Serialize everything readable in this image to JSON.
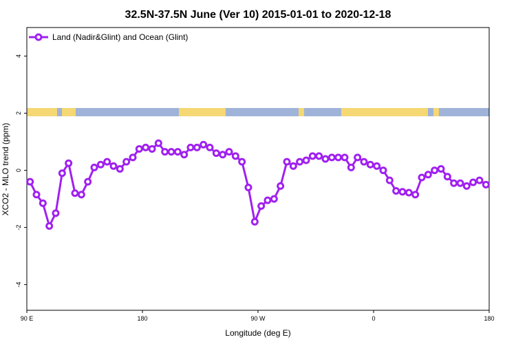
{
  "chart_data": {
    "type": "line",
    "title": "32.5N-37.5N June (Ver 10)   2015-01-01 to 2020-12-18",
    "xlabel": "Longitude (deg E)",
    "ylabel": "XCO2 - MLO trend (ppm)",
    "xlim": [
      90,
      450
    ],
    "ylim": [
      -4.9,
      5.0
    ],
    "x_ticks": [
      {
        "value": 90,
        "label": "90 E"
      },
      {
        "value": 180,
        "label": "180"
      },
      {
        "value": 270,
        "label": "90 W"
      },
      {
        "value": 360,
        "label": "0"
      },
      {
        "value": 450,
        "label": "180"
      }
    ],
    "y_ticks": [
      {
        "value": -4,
        "label": "-4"
      },
      {
        "value": -2,
        "label": "-2"
      },
      {
        "value": 0,
        "label": "0"
      },
      {
        "value": 2,
        "label": "2"
      },
      {
        "value": 4,
        "label": "4"
      }
    ],
    "colors": {
      "series": "#a020f0",
      "ocean": "#9fb3d8",
      "land": "#f5d773"
    },
    "legend_position": "top-left",
    "series": [
      {
        "name": "Land (Nadir&Glint) and Ocean (Glint)",
        "x": [
          92.5,
          97.5,
          102.5,
          107.5,
          112.5,
          117.5,
          122.5,
          127.5,
          132.5,
          137.5,
          142.5,
          147.5,
          152.5,
          157.5,
          162.5,
          167.5,
          172.5,
          177.5,
          182.5,
          187.5,
          192.5,
          197.5,
          202.5,
          207.5,
          212.5,
          217.5,
          222.5,
          227.5,
          232.5,
          237.5,
          242.5,
          247.5,
          252.5,
          257.5,
          262.5,
          267.5,
          272.5,
          277.5,
          282.5,
          287.5,
          292.5,
          297.5,
          302.5,
          307.5,
          312.5,
          317.5,
          322.5,
          327.5,
          332.5,
          337.5,
          342.5,
          347.5,
          352.5,
          357.5,
          362.5,
          367.5,
          372.5,
          377.5,
          382.5,
          387.5,
          392.5,
          397.5,
          402.5,
          407.5,
          412.5,
          417.5,
          422.5,
          427.5,
          432.5,
          437.5,
          442.5,
          447.5
        ],
        "y": [
          -0.4,
          -0.85,
          -1.15,
          -1.95,
          -1.5,
          -0.1,
          0.25,
          -0.8,
          -0.85,
          -0.4,
          0.1,
          0.2,
          0.3,
          0.15,
          0.05,
          0.3,
          0.45,
          0.75,
          0.8,
          0.75,
          0.95,
          0.65,
          0.65,
          0.65,
          0.55,
          0.8,
          0.8,
          0.9,
          0.8,
          0.6,
          0.55,
          0.65,
          0.5,
          0.3,
          -0.6,
          -1.8,
          -1.25,
          -1.05,
          -1.0,
          -0.55,
          0.3,
          0.15,
          0.3,
          0.35,
          0.5,
          0.5,
          0.4,
          0.45,
          0.45,
          0.45,
          0.1,
          0.45,
          0.3,
          0.2,
          0.15,
          0.0,
          -0.35,
          -0.72,
          -0.75,
          -0.78,
          -0.85,
          -0.25,
          -0.15,
          0.0,
          0.05,
          -0.22,
          -0.45,
          -0.45,
          -0.55,
          -0.42,
          -0.35,
          -0.5
        ]
      }
    ]
  }
}
